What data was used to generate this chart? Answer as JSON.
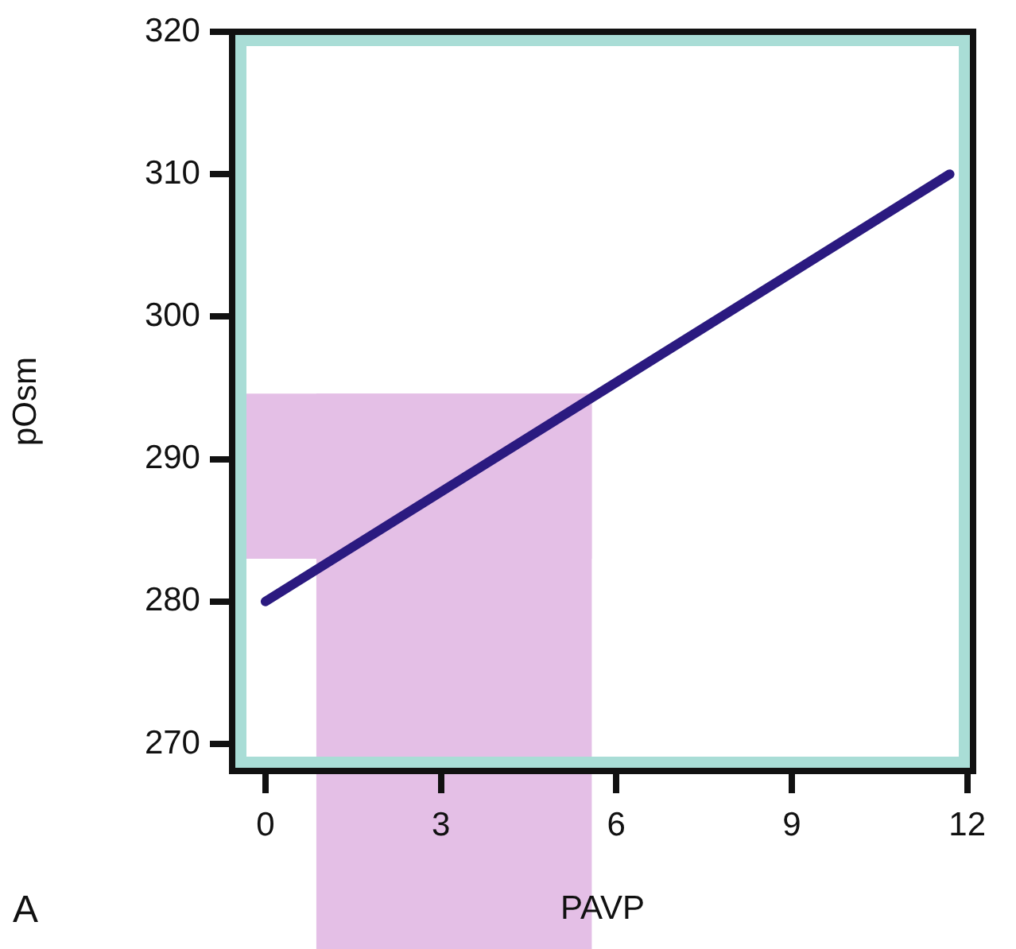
{
  "chart_data": {
    "type": "line",
    "xlabel": "PAVP",
    "ylabel": "pOsm",
    "x": [
      0,
      11.7
    ],
    "series": [
      {
        "color": "#2b1a80",
        "values": [
          280,
          310
        ]
      }
    ],
    "xlim": [
      -0.57,
      12.1
    ],
    "xticks": [
      0,
      3,
      6,
      9,
      12
    ],
    "ylim": [
      268.1,
      320
    ],
    "yticks": [
      270,
      280,
      290,
      300,
      310,
      320
    ],
    "bands": [
      {
        "axis": "x",
        "from": 0.87,
        "to": 5.58,
        "color": "#e4bfe6"
      },
      {
        "axis": "y",
        "from": 283,
        "to": 294.6,
        "color": "#e4bfe6"
      }
    ],
    "annotations": [
      "A"
    ],
    "grid": false,
    "legend": false,
    "marker": "none",
    "line_style": "solid"
  }
}
